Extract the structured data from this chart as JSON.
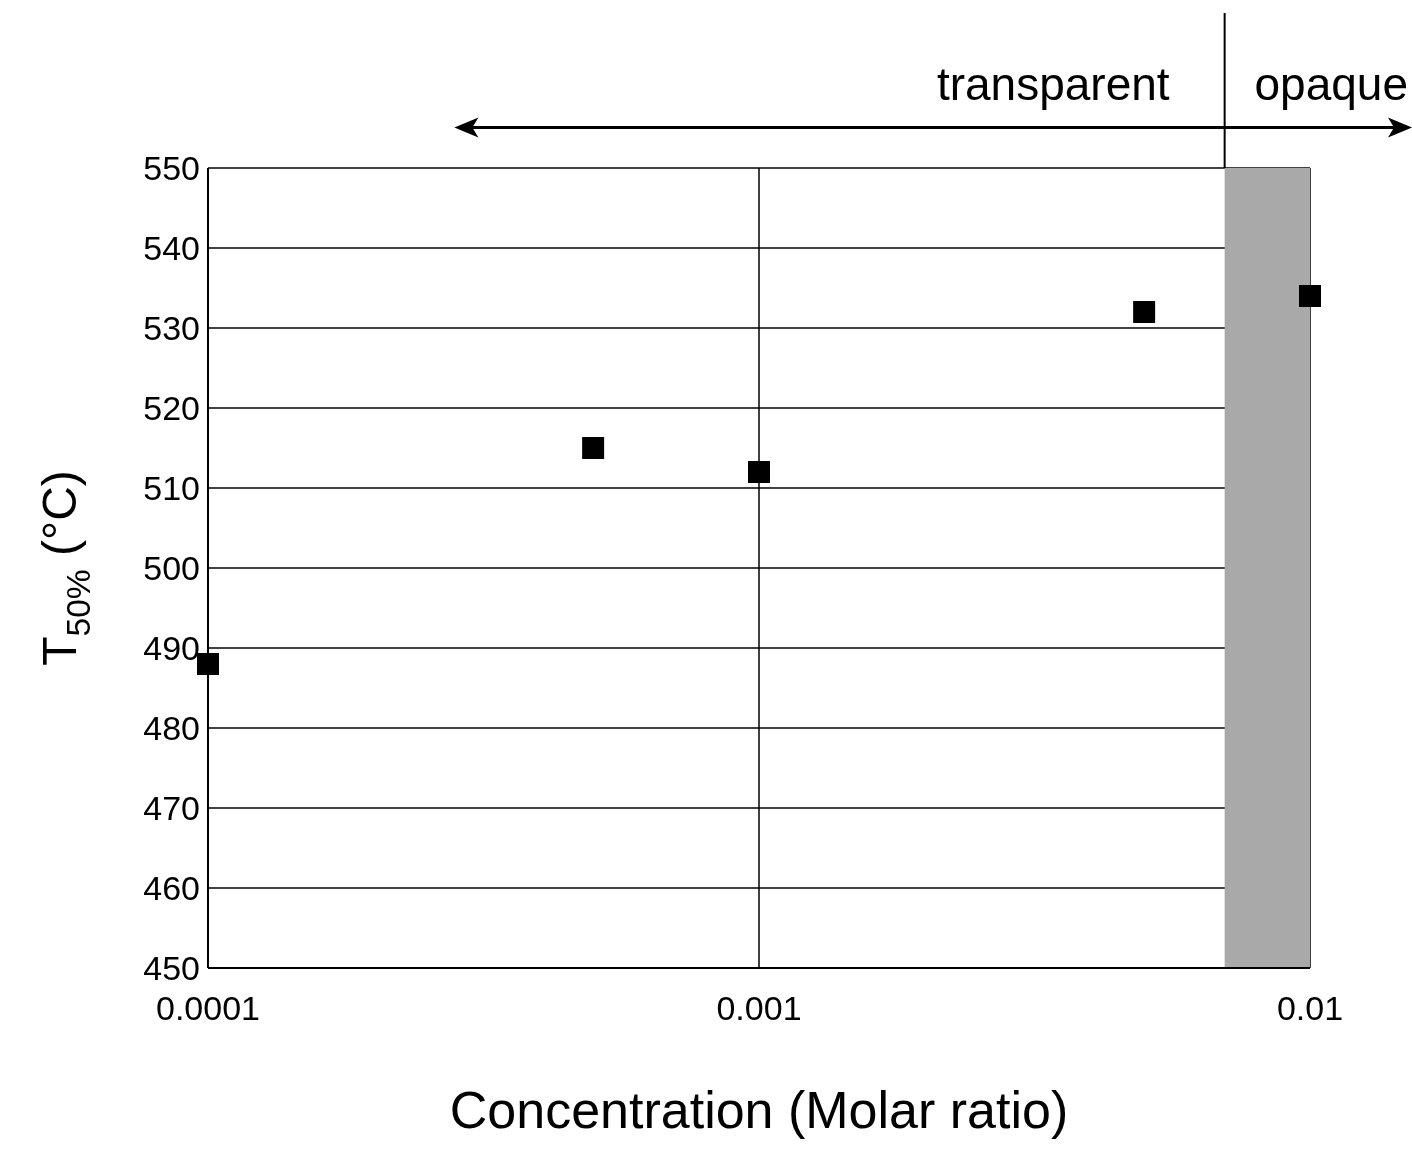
{
  "chart_data": {
    "type": "scatter",
    "xlabel": "Concentration (Molar ratio)",
    "ylabel": "T$_{50%}$ (°C)",
    "log": "x",
    "xlim": [
      0.0001,
      0.01
    ],
    "xticks": [
      0.0001,
      0.001,
      0.01
    ],
    "ylim": [
      450,
      550
    ],
    "yticks": [
      450,
      460,
      470,
      480,
      490,
      500,
      510,
      520,
      530,
      540,
      550
    ],
    "grid": true,
    "marker": "square",
    "series": [
      {
        "color": "#000000",
        "x": [
          0.0001,
          0.0005,
          0.001,
          0.005,
          0.01
        ],
        "values": [
          488,
          515,
          512,
          532,
          534
        ]
      }
    ],
    "bands": [
      {
        "axis": "x",
        "from": 0.007,
        "to": 0.01,
        "color": "#a9a9a9"
      }
    ],
    "annotations": [
      "transparent",
      "opaque"
    ]
  }
}
